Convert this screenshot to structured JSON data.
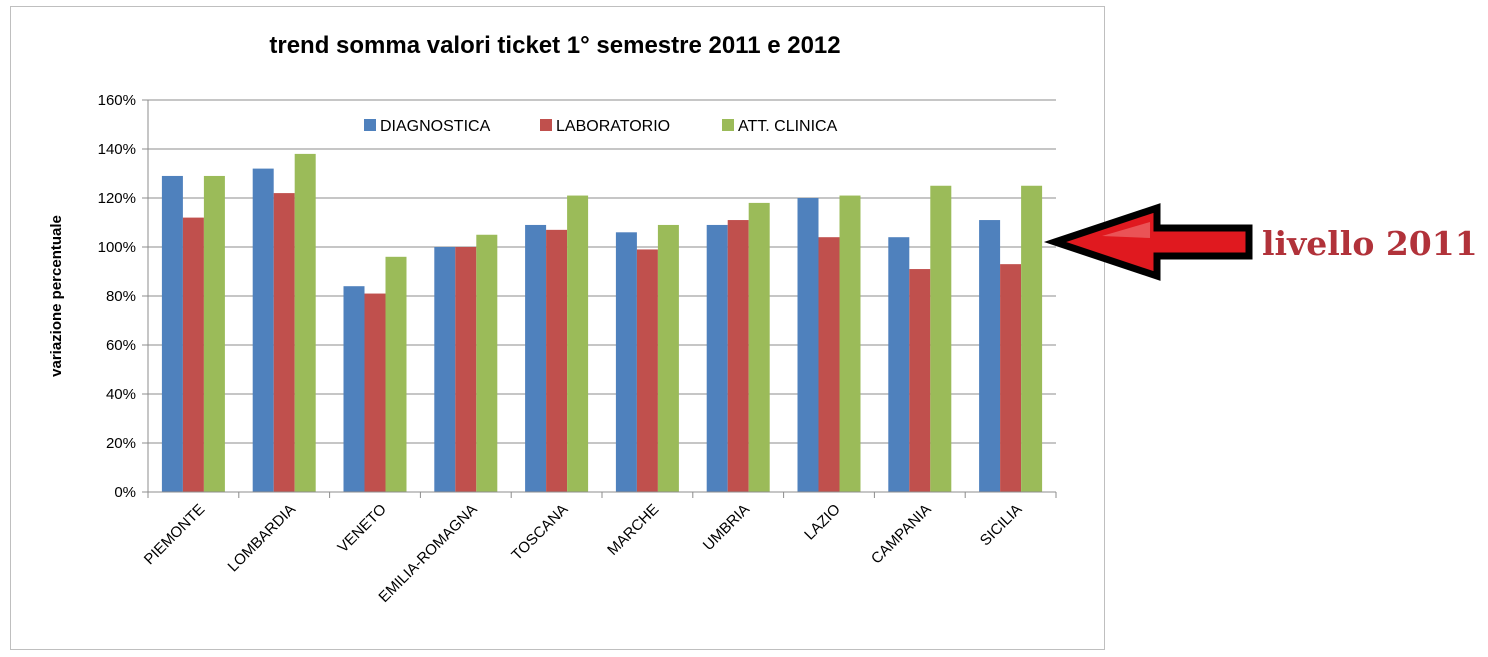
{
  "chart_data": {
    "type": "bar",
    "title": "trend somma valori ticket 1° semestre 2011 e 2012",
    "ylabel": "variazione percentuale",
    "xlabel": "",
    "ylim": [
      0,
      160
    ],
    "yticks": [
      "0%",
      "20%",
      "40%",
      "60%",
      "80%",
      "100%",
      "120%",
      "140%",
      "160%"
    ],
    "grid": true,
    "legend": "top",
    "categories": [
      "PIEMONTE",
      "LOMBARDIA",
      "VENETO",
      "EMILIA-ROMAGNA",
      "TOSCANA",
      "MARCHE",
      "UMBRIA",
      "LAZIO",
      "CAMPANIA",
      "SICILIA"
    ],
    "series": [
      {
        "name": "DIAGNOSTICA",
        "color": "#4f81bd",
        "values": [
          129,
          132,
          84,
          100,
          109,
          106,
          109,
          120,
          104,
          111
        ]
      },
      {
        "name": "LABORATORIO",
        "color": "#c0504d",
        "values": [
          112,
          122,
          81,
          100,
          107,
          99,
          111,
          104,
          91,
          93
        ]
      },
      {
        "name": "ATT. CLINICA",
        "color": "#9bbb59",
        "values": [
          129,
          138,
          96,
          105,
          121,
          109,
          118,
          121,
          125,
          125
        ]
      }
    ]
  },
  "annotation": {
    "text": "livello 2011",
    "arrow_color": "#e0191f",
    "text_color": "#b1323a"
  }
}
